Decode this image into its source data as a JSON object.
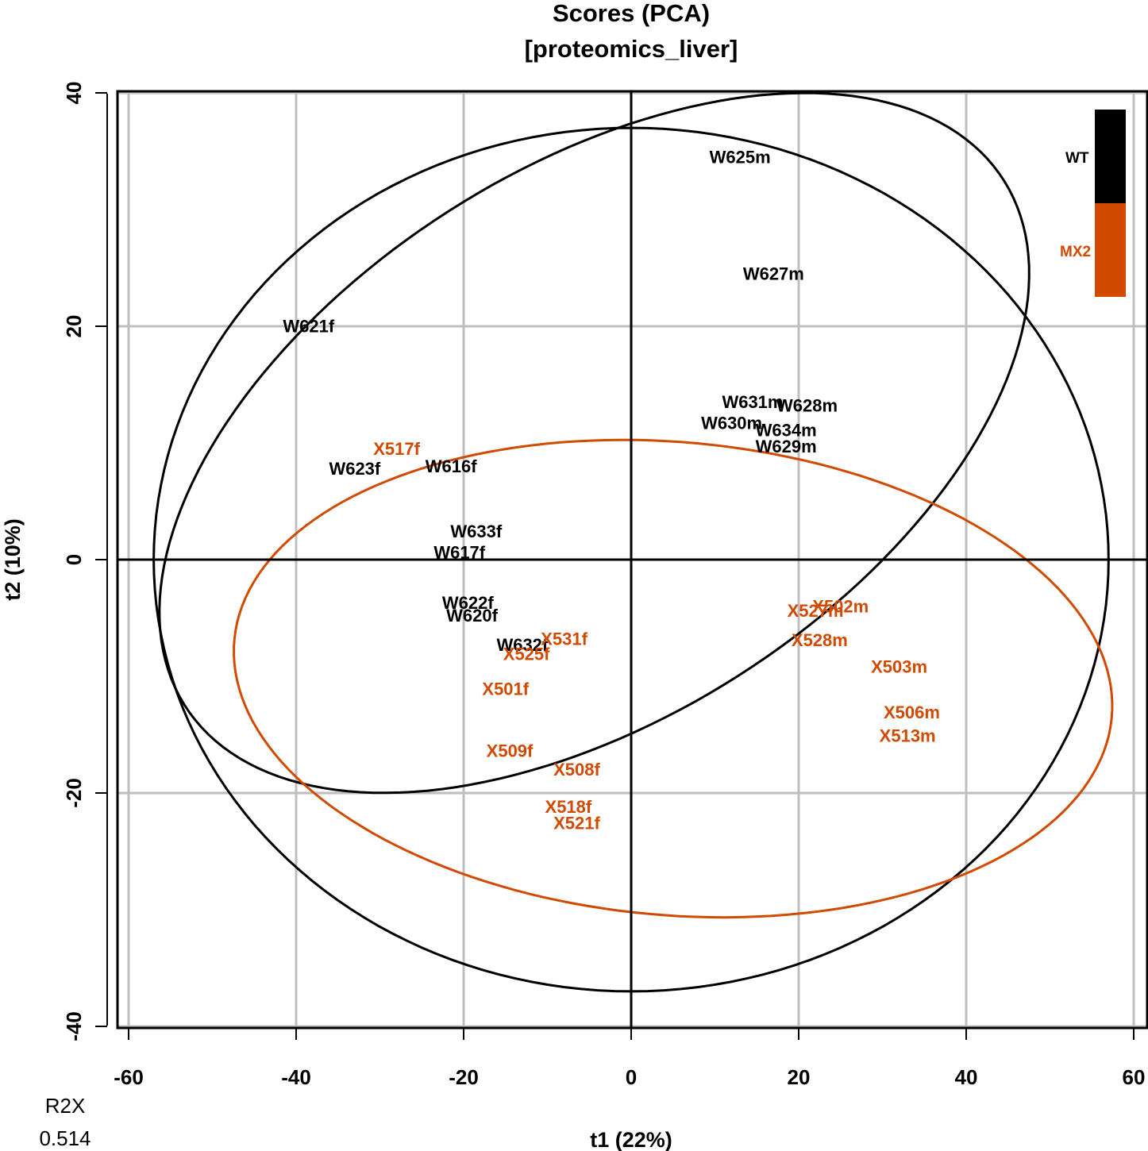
{
  "chart_data": {
    "type": "scatter",
    "title": "Scores (PCA)",
    "subtitle": "[proteomics_liver]",
    "xlabel": "t1 (22%)",
    "ylabel": "t2 (10%)",
    "xlim": [
      -60,
      60
    ],
    "ylim": [
      -40,
      40
    ],
    "xticks": [
      "-60",
      "-40",
      "-20",
      "0",
      "20",
      "40",
      "60"
    ],
    "yticks": [
      "40",
      "20",
      "0",
      "-20",
      "-40"
    ],
    "grid": true,
    "legend_position": "top-right",
    "r2x_label": "R2X",
    "r2x_value": "0.514",
    "colors": {
      "WT": "#000000",
      "MX2": "#d24a00",
      "grid": "#bebebe"
    },
    "legend": [
      {
        "label": "WT",
        "color": "#000000"
      },
      {
        "label": "MX2",
        "color": "#d24a00"
      }
    ],
    "series": [
      {
        "group": "WT",
        "color": "#000000",
        "points": [
          {
            "label": "W625m",
            "x": 13.0,
            "y": 34.5
          },
          {
            "label": "W627m",
            "x": 17.0,
            "y": 24.5
          },
          {
            "label": "W621f",
            "x": -38.5,
            "y": 20.0
          },
          {
            "label": "W631m",
            "x": 14.5,
            "y": 13.5
          },
          {
            "label": "W628m",
            "x": 21.0,
            "y": 13.2
          },
          {
            "label": "W630m",
            "x": 12.0,
            "y": 11.7
          },
          {
            "label": "W634m",
            "x": 18.5,
            "y": 11.1
          },
          {
            "label": "W629m",
            "x": 18.5,
            "y": 9.7
          },
          {
            "label": "W623f",
            "x": -33.0,
            "y": 7.8
          },
          {
            "label": "W616f",
            "x": -21.5,
            "y": 8.0
          },
          {
            "label": "W633f",
            "x": -18.5,
            "y": 2.4
          },
          {
            "label": "W617f",
            "x": -20.5,
            "y": 0.6
          },
          {
            "label": "W622f",
            "x": -19.5,
            "y": -3.7
          },
          {
            "label": "W620f",
            "x": -19.0,
            "y": -4.8
          },
          {
            "label": "W632f",
            "x": -13.0,
            "y": -7.3
          }
        ]
      },
      {
        "group": "MX2",
        "color": "#d24a00",
        "points": [
          {
            "label": "X517f",
            "x": -28.0,
            "y": 9.5
          },
          {
            "label": "X531f",
            "x": -8.0,
            "y": -6.8
          },
          {
            "label": "X525f",
            "x": -12.5,
            "y": -8.1
          },
          {
            "label": "X501f",
            "x": -15.0,
            "y": -11.1
          },
          {
            "label": "X509f",
            "x": -14.5,
            "y": -16.4
          },
          {
            "label": "X508f",
            "x": -6.5,
            "y": -18.0
          },
          {
            "label": "X518f",
            "x": -7.5,
            "y": -21.2
          },
          {
            "label": "X521f",
            "x": -6.5,
            "y": -22.6
          },
          {
            "label": "X502m",
            "x": 25.0,
            "y": -4.0
          },
          {
            "label": "X527m",
            "x": 22.0,
            "y": -4.4
          },
          {
            "label": "X528m",
            "x": 22.5,
            "y": -6.9
          },
          {
            "label": "X503m",
            "x": 32.0,
            "y": -9.2
          },
          {
            "label": "X506m",
            "x": 33.5,
            "y": -13.1
          },
          {
            "label": "X513m",
            "x": 33.0,
            "y": -15.1
          }
        ]
      }
    ],
    "ellipses": [
      {
        "group": "Hotelling T2 (all)",
        "color": "#000000",
        "center": [
          0,
          0
        ],
        "semi_axes": [
          57,
          37
        ],
        "angle_deg": 0
      },
      {
        "group": "WT",
        "color": "#000000",
        "center": [
          -4.4,
          10
        ],
        "semi_axes": [
          54.5,
          25
        ],
        "angle_deg": 20
      },
      {
        "group": "MX2",
        "color": "#d24a00",
        "center": [
          5,
          -10.2
        ],
        "semi_axes": [
          52.5,
          20.3
        ],
        "angle_deg": -3
      }
    ]
  }
}
